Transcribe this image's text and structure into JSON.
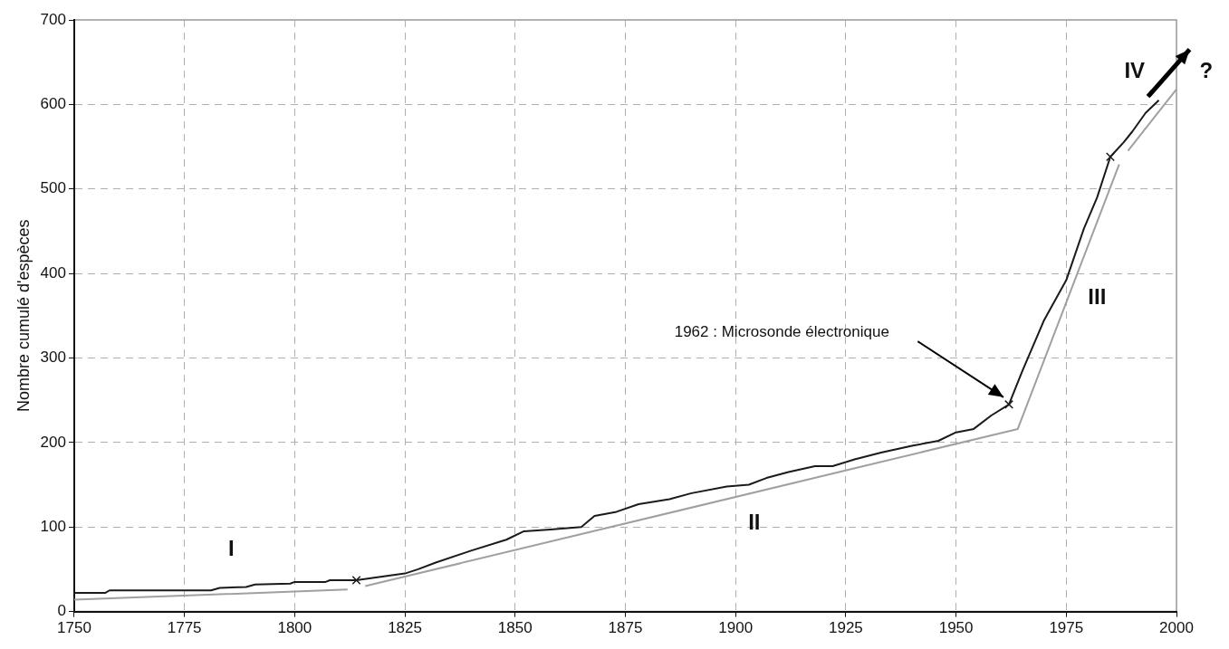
{
  "chart_data": {
    "type": "line",
    "ylabel": "Nombre cumulé d'espèces",
    "xlim": [
      1750,
      2000
    ],
    "xticks": [
      1750,
      1775,
      1800,
      1825,
      1850,
      1875,
      1900,
      1925,
      1950,
      1975,
      2000
    ],
    "ylim": [
      0,
      700
    ],
    "yticks": [
      0,
      100,
      200,
      300,
      400,
      500,
      600,
      700
    ],
    "grid": true,
    "legend": false,
    "series": [
      {
        "color": "#a0a0a0",
        "marker": "none",
        "x": [
          1750,
          1812,
          1814,
          1816,
          1964,
          1987,
          1988,
          1989,
          2000
        ],
        "values": [
          14,
          26,
          null,
          30,
          216,
          529,
          null,
          545,
          618
        ]
      },
      {
        "color": "#1a1a1a",
        "marker": "none",
        "x": [
          1750,
          1757,
          1758,
          1781,
          1783,
          1789,
          1791,
          1799,
          1800,
          1807,
          1808,
          1814,
          1818,
          1825,
          1828,
          1832,
          1840,
          1848,
          1852,
          1858,
          1865,
          1868,
          1873,
          1878,
          1885,
          1890,
          1898,
          1903,
          1907,
          1912,
          1918,
          1922,
          1927,
          1933,
          1940,
          1946,
          1950,
          1954,
          1958,
          1962,
          1965,
          1970,
          1975,
          1979,
          1982,
          1985,
          1988,
          1990,
          1993,
          1996
        ],
        "values": [
          22,
          22,
          25,
          25,
          28,
          29,
          32,
          33,
          35,
          35,
          37,
          37,
          40,
          45,
          50,
          58,
          72,
          85,
          95,
          97,
          100,
          113,
          118,
          127,
          133,
          140,
          148,
          150,
          158,
          165,
          172,
          172,
          180,
          188,
          196,
          202,
          212,
          216,
          232,
          245,
          284,
          345,
          392,
          453,
          490,
          538,
          555,
          568,
          590,
          605
        ]
      },
      {
        "type": "scatter",
        "color": "#1a1a1a",
        "marker": "cross",
        "x": [
          1814,
          1962,
          1985
        ],
        "values": [
          37,
          245,
          538
        ]
      }
    ],
    "annotations": [
      "I",
      "II",
      "III",
      "IV",
      "1962 : Microsonde électronique",
      "?"
    ]
  }
}
